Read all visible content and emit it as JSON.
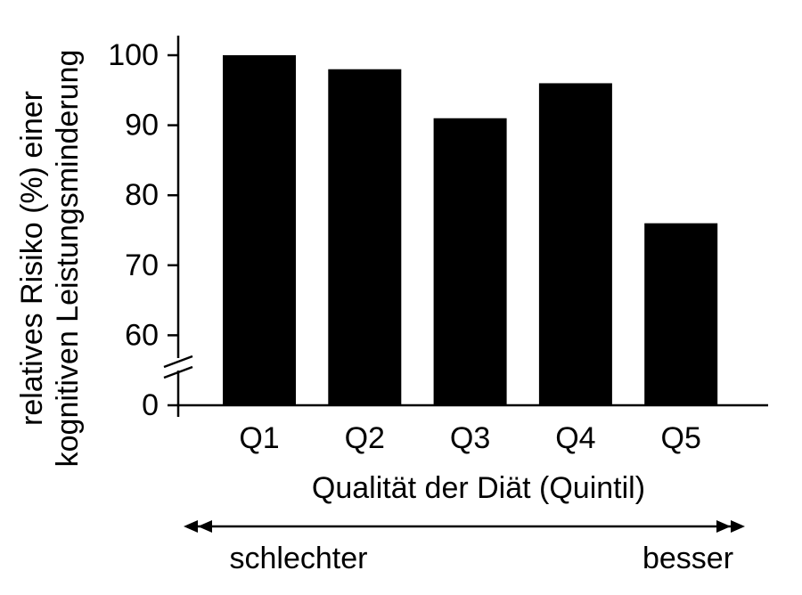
{
  "chart_data": {
    "type": "bar",
    "y_label_lines": [
      "relatives Risiko (%) einer",
      "kognitiven Leistungsminderung"
    ],
    "x_label": "Qualität der Diät (Quintil)",
    "direction_labels": [
      "schlechter",
      "besser"
    ],
    "categories": [
      "Q1",
      "Q2",
      "Q3",
      "Q4",
      "Q5"
    ],
    "values": [
      100,
      98,
      91,
      96,
      76
    ],
    "color": "#000000",
    "ylim": [
      0,
      100
    ],
    "yticks": [
      0,
      60,
      70,
      80,
      90,
      100
    ],
    "axis_break": true,
    "grid": false
  }
}
